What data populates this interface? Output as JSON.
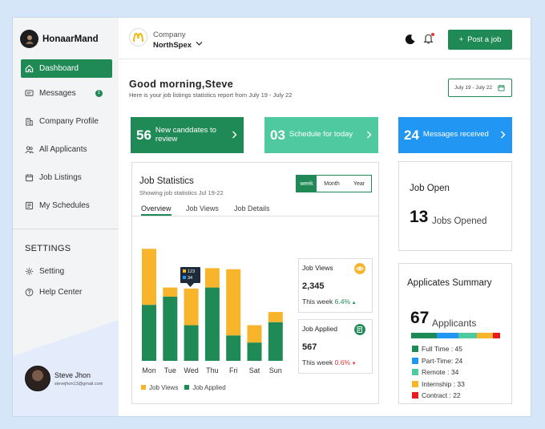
{
  "brand": {
    "name": "HonaarMand"
  },
  "sidebar": {
    "items": [
      {
        "label": "Dashboard",
        "icon": "home-icon",
        "active": true
      },
      {
        "label": "Messages",
        "icon": "message-icon",
        "badge": "1"
      },
      {
        "label": "Company Profile",
        "icon": "building-icon"
      },
      {
        "label": "All Applicants",
        "icon": "users-icon"
      },
      {
        "label": "Job Listings",
        "icon": "calendar-icon"
      },
      {
        "label": "My Schedules",
        "icon": "schedule-icon"
      }
    ],
    "settings_title": "SETTINGS",
    "settings_items": [
      {
        "label": "Setting",
        "icon": "gear-icon"
      },
      {
        "label": "Help Center",
        "icon": "help-icon"
      }
    ],
    "user": {
      "name": "Steve Jhon",
      "email": "stevejhon13@gmail.com"
    }
  },
  "header": {
    "company_label": "Company",
    "company_name": "NorthSpex",
    "post_button": "Post a job"
  },
  "greeting": {
    "title": "Good morning,Steve",
    "subtitle": "Here is your job listings statistics report from July 19 - July 22",
    "date_range": "July 19 - July 22"
  },
  "stats": [
    {
      "value": "56",
      "label": "New canddates to review",
      "color": "#1f8a55"
    },
    {
      "value": "03",
      "label": "Schedule for today",
      "color": "#4ec9a0"
    },
    {
      "value": "24",
      "label": "Messages received",
      "color": "#2196f3"
    }
  ],
  "job_statistics": {
    "title": "Job Statistics",
    "subtitle": "Showing job statistics Jul 19-22",
    "periods": [
      "week",
      "Month",
      "Year"
    ],
    "tabs": [
      "Overview",
      "Job Views",
      "Job Details"
    ],
    "tooltip": [
      "123",
      "34"
    ],
    "legend": [
      "Job Views",
      "Job Applied"
    ],
    "job_views_card": {
      "title": "Job Views",
      "value": "2,345",
      "period": "This week",
      "change": "6.4%",
      "change_color": "#1f8a55"
    },
    "job_applied_card": {
      "title": "Job Applied",
      "value": "567",
      "period": "This week",
      "change": "0.6%",
      "change_color": "#e53935"
    }
  },
  "chart_data": {
    "type": "bar",
    "stacked": true,
    "categories": [
      "Mon",
      "Tue",
      "Wed",
      "Thu",
      "Fri",
      "Sat",
      "Sun"
    ],
    "series": [
      {
        "name": "Job Applied",
        "color": "#1f8a55",
        "values": [
          55,
          63,
          35,
          72,
          25,
          18,
          38
        ]
      },
      {
        "name": "Job Views",
        "color": "#f8b52b",
        "values": [
          55,
          9,
          36,
          19,
          65,
          17,
          10
        ]
      }
    ]
  },
  "job_open": {
    "title": "Job Open",
    "value": "13",
    "label": "Jobs Opened"
  },
  "summary": {
    "title": "Applicates Summary",
    "value": "67",
    "label": "Applicants",
    "items": [
      {
        "label": "Full Time : 45",
        "color": "#1f8a55",
        "share": 28
      },
      {
        "label": "Part-Time: 24",
        "color": "#2196f3",
        "share": 24
      },
      {
        "label": "Remote : 34",
        "color": "#4ec9a0",
        "share": 20
      },
      {
        "label": "Internship : 33",
        "color": "#f8b52b",
        "share": 17
      },
      {
        "label": "Contract : 22",
        "color": "#e81c1c",
        "share": 8
      }
    ]
  }
}
